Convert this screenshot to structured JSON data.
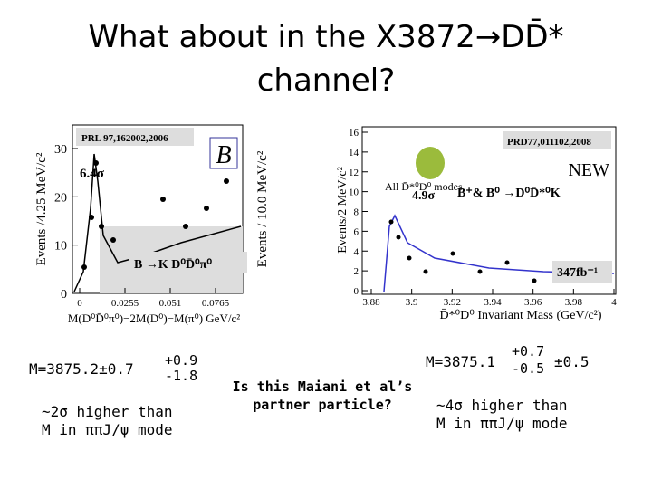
{
  "title": {
    "line1": "What about in the X3872→DD̄*",
    "line2": "channel?"
  },
  "left_plot": {
    "reference": "PRL 97,162002,2006",
    "significance": "6.4σ",
    "channel": "B →K D⁰D̄⁰π⁰",
    "y_label": "Events /4.25 MeV/c²",
    "y2_label": "Events / 10.0 MeV/c²",
    "x_label": "M(D⁰D̄⁰π⁰)−2M(D⁰)−M(π⁰) GeV/c²",
    "yticks": [
      0,
      10,
      20,
      30
    ],
    "xticks": [
      0,
      0.0255,
      0.051,
      0.0765
    ]
  },
  "right_plot": {
    "reference": "PRD77,011102,2008",
    "new": "NEW",
    "modes": "All D̄*⁰D⁰ modes",
    "significance": "4.9σ",
    "channel": "B⁺& B⁰ →D⁰D̄*⁰K",
    "luminosity": "347fb⁻¹",
    "y_label": "Events/2 MeV/c²",
    "x_label": "D̄*⁰D⁰ Invariant Mass (GeV/c²)",
    "yticks": [
      0,
      2,
      4,
      6,
      8,
      10,
      12,
      14,
      16
    ],
    "xticks": [
      3.88,
      3.9,
      3.92,
      3.94,
      3.96,
      3.98,
      4
    ]
  },
  "left_result": {
    "mass": "M=3875.2±0.7",
    "upper": "+0.9",
    "lower": "-1.8",
    "note_line1": "~2σ higher than",
    "note_line2": "M in ππJ/ψ mode"
  },
  "center_question": {
    "line1": "Is this Maiani et al’s",
    "line2": "partner particle?"
  },
  "right_result": {
    "mass": "M=3875.1",
    "upper": "+0.7",
    "lower": "-0.5",
    "syst": "±0.5",
    "note_line1": "~4σ higher than",
    "note_line2": "M in ππJ/ψ mode"
  }
}
